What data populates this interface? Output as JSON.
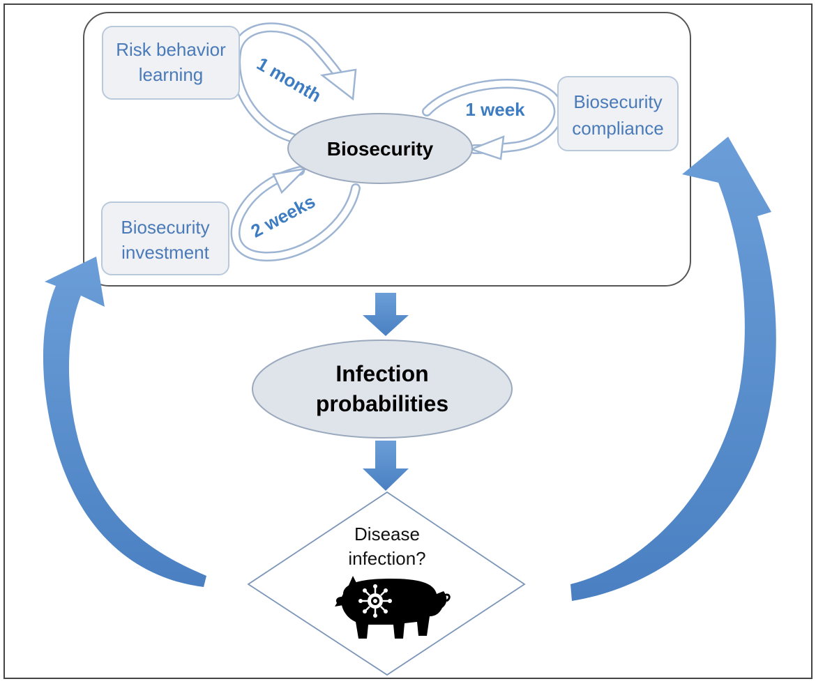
{
  "nodes": {
    "risk_behavior": {
      "lines": [
        "Risk behavior",
        "learning"
      ]
    },
    "compliance": {
      "lines": [
        "Biosecurity",
        "compliance"
      ]
    },
    "investment": {
      "lines": [
        "Biosecurity",
        "investment"
      ]
    },
    "biosecurity": {
      "label": "Biosecurity"
    },
    "infection": {
      "lines": [
        "Infection",
        "probabilities"
      ]
    },
    "disease": {
      "lines": [
        "Disease",
        "infection?"
      ]
    }
  },
  "cycles": {
    "month": "1 month",
    "week": "1 week",
    "two_weeks": "2 weeks"
  },
  "colors": {
    "arrow_blue": "#5b8fcf",
    "box_fill": "#eff1f4",
    "box_stroke": "#b9c9dc",
    "ellipse_fill": "#dfe3ea",
    "ellipse_stroke": "#9aa9bd",
    "label_blue": "#3d7cc1"
  },
  "icons": {
    "pig": "pig-with-virus-icon"
  }
}
